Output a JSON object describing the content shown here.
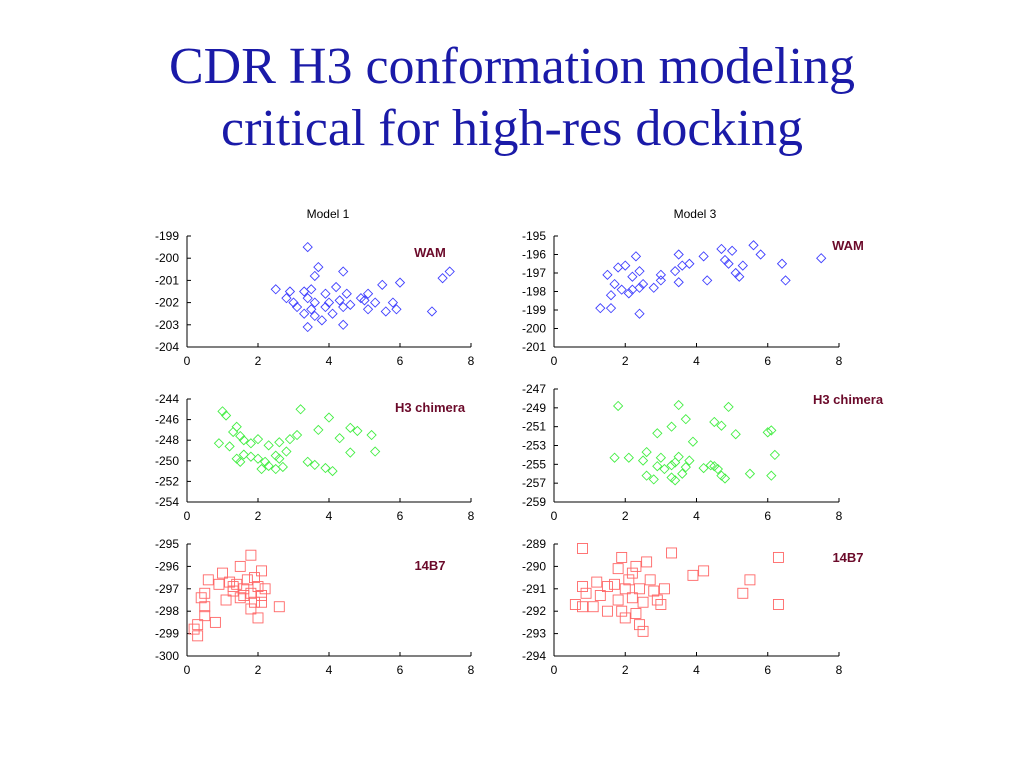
{
  "slide": {
    "title_line1": "CDR H3 conformation modeling",
    "title_line2": "critical for high-res docking"
  },
  "chart_data": [
    {
      "id": "m1-wam",
      "type": "scatter",
      "title": "Model 1",
      "annotation": "WAM",
      "marker": "diamond",
      "color": "#4040ff",
      "xlim": [
        0,
        8
      ],
      "xticks": [
        0,
        2,
        4,
        6,
        8
      ],
      "ylim": [
        -204,
        -199
      ],
      "yticks": [
        -199,
        -200,
        -201,
        -202,
        -203,
        -204
      ],
      "points": [
        [
          3.4,
          -199.5
        ],
        [
          3.7,
          -200.4
        ],
        [
          4.4,
          -200.6
        ],
        [
          3.6,
          -200.8
        ],
        [
          7.4,
          -200.6
        ],
        [
          7.2,
          -200.9
        ],
        [
          6.0,
          -201.1
        ],
        [
          2.5,
          -201.4
        ],
        [
          2.9,
          -201.5
        ],
        [
          3.3,
          -201.5
        ],
        [
          3.5,
          -201.4
        ],
        [
          3.9,
          -201.6
        ],
        [
          4.2,
          -201.3
        ],
        [
          4.5,
          -201.6
        ],
        [
          4.9,
          -201.8
        ],
        [
          5.1,
          -201.6
        ],
        [
          5.5,
          -201.2
        ],
        [
          2.8,
          -201.8
        ],
        [
          3.0,
          -202.0
        ],
        [
          3.4,
          -201.8
        ],
        [
          3.6,
          -202.0
        ],
        [
          4.0,
          -202.0
        ],
        [
          4.3,
          -201.9
        ],
        [
          4.6,
          -202.1
        ],
        [
          5.0,
          -201.9
        ],
        [
          5.3,
          -202.0
        ],
        [
          5.8,
          -202.0
        ],
        [
          3.1,
          -202.2
        ],
        [
          3.5,
          -202.3
        ],
        [
          3.9,
          -202.2
        ],
        [
          4.4,
          -202.2
        ],
        [
          5.1,
          -202.3
        ],
        [
          5.6,
          -202.4
        ],
        [
          5.9,
          -202.3
        ],
        [
          3.3,
          -202.5
        ],
        [
          3.6,
          -202.6
        ],
        [
          3.8,
          -202.8
        ],
        [
          4.1,
          -202.5
        ],
        [
          6.9,
          -202.4
        ],
        [
          3.4,
          -203.1
        ],
        [
          4.4,
          -203.0
        ]
      ]
    },
    {
      "id": "m3-wam",
      "type": "scatter",
      "title": "Model 3",
      "annotation": "WAM",
      "marker": "diamond",
      "color": "#4040ff",
      "xlim": [
        0,
        8
      ],
      "xticks": [
        0,
        2,
        4,
        6,
        8
      ],
      "ylim": [
        -201,
        -195
      ],
      "yticks": [
        -195,
        -196,
        -197,
        -198,
        -199,
        -200,
        -201
      ],
      "points": [
        [
          4.7,
          -195.7
        ],
        [
          5.6,
          -195.5
        ],
        [
          5.0,
          -195.8
        ],
        [
          5.8,
          -196.0
        ],
        [
          6.4,
          -196.5
        ],
        [
          7.5,
          -196.2
        ],
        [
          3.5,
          -196.0
        ],
        [
          2.3,
          -196.1
        ],
        [
          4.2,
          -196.1
        ],
        [
          4.8,
          -196.3
        ],
        [
          4.9,
          -196.5
        ],
        [
          5.3,
          -196.6
        ],
        [
          5.1,
          -197.0
        ],
        [
          5.2,
          -197.2
        ],
        [
          6.5,
          -197.4
        ],
        [
          2.0,
          -196.6
        ],
        [
          2.4,
          -196.9
        ],
        [
          1.8,
          -196.7
        ],
        [
          1.5,
          -197.1
        ],
        [
          2.2,
          -197.2
        ],
        [
          3.0,
          -197.1
        ],
        [
          3.6,
          -196.6
        ],
        [
          3.8,
          -196.5
        ],
        [
          3.4,
          -196.9
        ],
        [
          4.3,
          -197.4
        ],
        [
          3.0,
          -197.4
        ],
        [
          3.5,
          -197.5
        ],
        [
          1.7,
          -197.6
        ],
        [
          1.9,
          -197.9
        ],
        [
          2.4,
          -197.8
        ],
        [
          2.8,
          -197.8
        ],
        [
          2.1,
          -198.1
        ],
        [
          2.5,
          -197.6
        ],
        [
          2.2,
          -197.9
        ],
        [
          1.6,
          -198.2
        ],
        [
          1.3,
          -198.9
        ],
        [
          1.6,
          -198.9
        ],
        [
          2.4,
          -199.2
        ]
      ]
    },
    {
      "id": "m1-chimera",
      "type": "scatter",
      "title": "",
      "annotation": "H3 chimera",
      "marker": "diamond",
      "color": "#44ee44",
      "xlim": [
        0,
        8
      ],
      "xticks": [
        0,
        2,
        4,
        6,
        8
      ],
      "ylim": [
        -254,
        -244
      ],
      "yticks": [
        -244,
        -246,
        -248,
        -250,
        -252,
        -254
      ],
      "points": [
        [
          1.0,
          -245.2
        ],
        [
          1.1,
          -245.6
        ],
        [
          3.2,
          -245.0
        ],
        [
          4.0,
          -245.8
        ],
        [
          1.4,
          -246.7
        ],
        [
          1.3,
          -247.2
        ],
        [
          1.5,
          -247.6
        ],
        [
          1.6,
          -248.0
        ],
        [
          1.8,
          -248.3
        ],
        [
          2.0,
          -247.9
        ],
        [
          2.3,
          -248.5
        ],
        [
          2.6,
          -248.2
        ],
        [
          2.9,
          -247.9
        ],
        [
          3.1,
          -247.5
        ],
        [
          3.7,
          -247.0
        ],
        [
          4.3,
          -247.8
        ],
        [
          4.6,
          -246.8
        ],
        [
          4.8,
          -247.1
        ],
        [
          5.2,
          -247.5
        ],
        [
          5.3,
          -249.1
        ],
        [
          4.6,
          -249.2
        ],
        [
          0.9,
          -248.3
        ],
        [
          1.2,
          -248.6
        ],
        [
          1.4,
          -249.8
        ],
        [
          1.6,
          -249.4
        ],
        [
          1.8,
          -249.6
        ],
        [
          2.0,
          -249.8
        ],
        [
          2.2,
          -250.1
        ],
        [
          2.5,
          -249.5
        ],
        [
          2.6,
          -249.8
        ],
        [
          2.8,
          -249.1
        ],
        [
          2.3,
          -250.5
        ],
        [
          2.5,
          -250.8
        ],
        [
          2.7,
          -250.6
        ],
        [
          2.1,
          -250.8
        ],
        [
          3.4,
          -250.1
        ],
        [
          3.6,
          -250.4
        ],
        [
          3.9,
          -250.7
        ],
        [
          4.1,
          -251.0
        ],
        [
          1.5,
          -250.1
        ]
      ]
    },
    {
      "id": "m3-chimera",
      "type": "scatter",
      "title": "",
      "annotation": "H3 chimera",
      "marker": "diamond",
      "color": "#44ee44",
      "xlim": [
        0,
        8
      ],
      "xticks": [
        0,
        2,
        4,
        6,
        8
      ],
      "ylim": [
        -259,
        -247
      ],
      "yticks": [
        -247,
        -249,
        -251,
        -253,
        -255,
        -257,
        -259
      ],
      "points": [
        [
          1.8,
          -248.8
        ],
        [
          3.5,
          -248.7
        ],
        [
          4.9,
          -248.9
        ],
        [
          4.5,
          -250.5
        ],
        [
          4.7,
          -250.9
        ],
        [
          3.7,
          -250.2
        ],
        [
          3.3,
          -251.0
        ],
        [
          2.9,
          -251.7
        ],
        [
          5.1,
          -251.8
        ],
        [
          6.1,
          -251.4
        ],
        [
          6.0,
          -251.6
        ],
        [
          3.9,
          -252.6
        ],
        [
          2.6,
          -253.7
        ],
        [
          3.0,
          -254.3
        ],
        [
          3.5,
          -254.2
        ],
        [
          3.4,
          -254.8
        ],
        [
          3.8,
          -254.6
        ],
        [
          1.7,
          -254.3
        ],
        [
          2.1,
          -254.3
        ],
        [
          2.5,
          -254.6
        ],
        [
          2.9,
          -255.2
        ],
        [
          3.1,
          -255.5
        ],
        [
          3.3,
          -255.1
        ],
        [
          3.7,
          -255.3
        ],
        [
          4.2,
          -255.4
        ],
        [
          4.4,
          -255.1
        ],
        [
          4.6,
          -255.5
        ],
        [
          4.5,
          -255.2
        ],
        [
          4.7,
          -256.2
        ],
        [
          4.8,
          -256.5
        ],
        [
          5.5,
          -256.0
        ],
        [
          6.1,
          -256.2
        ],
        [
          6.2,
          -254.0
        ],
        [
          2.6,
          -256.2
        ],
        [
          2.8,
          -256.6
        ],
        [
          3.3,
          -256.4
        ],
        [
          3.6,
          -256.0
        ],
        [
          3.4,
          -256.7
        ]
      ]
    },
    {
      "id": "m1-14b7",
      "type": "scatter",
      "title": "",
      "annotation": "14B7",
      "marker": "square",
      "color": "#ff6666",
      "xlim": [
        0,
        8
      ],
      "xticks": [
        0,
        2,
        4,
        6,
        8
      ],
      "ylim": [
        -300,
        -295
      ],
      "yticks": [
        -295,
        -296,
        -297,
        -298,
        -299,
        -300
      ],
      "points": [
        [
          1.8,
          -295.5
        ],
        [
          1.5,
          -296.0
        ],
        [
          2.1,
          -296.2
        ],
        [
          1.0,
          -296.3
        ],
        [
          0.6,
          -296.6
        ],
        [
          1.2,
          -296.7
        ],
        [
          1.4,
          -296.8
        ],
        [
          1.7,
          -296.6
        ],
        [
          1.9,
          -296.5
        ],
        [
          2.0,
          -296.9
        ],
        [
          0.9,
          -296.8
        ],
        [
          1.3,
          -297.1
        ],
        [
          1.6,
          -297.0
        ],
        [
          1.8,
          -297.2
        ],
        [
          2.2,
          -297.0
        ],
        [
          2.1,
          -297.3
        ],
        [
          0.5,
          -297.2
        ],
        [
          0.4,
          -297.4
        ],
        [
          1.1,
          -297.5
        ],
        [
          1.5,
          -297.4
        ],
        [
          1.9,
          -297.6
        ],
        [
          2.1,
          -297.6
        ],
        [
          0.5,
          -297.8
        ],
        [
          2.6,
          -297.8
        ],
        [
          1.8,
          -297.9
        ],
        [
          0.5,
          -298.2
        ],
        [
          2.0,
          -298.3
        ],
        [
          0.8,
          -298.5
        ],
        [
          0.3,
          -298.6
        ],
        [
          0.2,
          -298.8
        ],
        [
          0.3,
          -299.1
        ],
        [
          1.6,
          -297.3
        ],
        [
          1.3,
          -296.9
        ]
      ]
    },
    {
      "id": "m3-14b7",
      "type": "scatter",
      "title": "",
      "annotation": "14B7",
      "marker": "square",
      "color": "#ff6666",
      "xlim": [
        0,
        8
      ],
      "xticks": [
        0,
        2,
        4,
        6,
        8
      ],
      "ylim": [
        -294,
        -289
      ],
      "yticks": [
        -289,
        -290,
        -291,
        -292,
        -293,
        -294
      ],
      "points": [
        [
          0.8,
          -289.2
        ],
        [
          3.3,
          -289.4
        ],
        [
          6.3,
          -289.6
        ],
        [
          1.9,
          -289.6
        ],
        [
          2.6,
          -289.8
        ],
        [
          2.3,
          -290.0
        ],
        [
          1.8,
          -290.1
        ],
        [
          2.2,
          -290.3
        ],
        [
          4.2,
          -290.2
        ],
        [
          3.9,
          -290.4
        ],
        [
          5.5,
          -290.6
        ],
        [
          2.7,
          -290.6
        ],
        [
          2.1,
          -290.6
        ],
        [
          1.2,
          -290.7
        ],
        [
          1.5,
          -290.9
        ],
        [
          0.8,
          -290.9
        ],
        [
          1.7,
          -290.8
        ],
        [
          2.0,
          -291.0
        ],
        [
          2.4,
          -291.0
        ],
        [
          2.8,
          -291.1
        ],
        [
          3.1,
          -291.0
        ],
        [
          0.9,
          -291.2
        ],
        [
          1.3,
          -291.3
        ],
        [
          1.8,
          -291.5
        ],
        [
          2.2,
          -291.4
        ],
        [
          2.5,
          -291.6
        ],
        [
          2.9,
          -291.5
        ],
        [
          3.0,
          -291.7
        ],
        [
          5.3,
          -291.2
        ],
        [
          0.6,
          -291.7
        ],
        [
          1.1,
          -291.8
        ],
        [
          0.8,
          -291.8
        ],
        [
          1.5,
          -292.0
        ],
        [
          1.9,
          -292.0
        ],
        [
          2.3,
          -292.1
        ],
        [
          6.3,
          -291.7
        ],
        [
          2.0,
          -292.3
        ],
        [
          2.4,
          -292.6
        ],
        [
          2.5,
          -292.9
        ]
      ]
    }
  ]
}
